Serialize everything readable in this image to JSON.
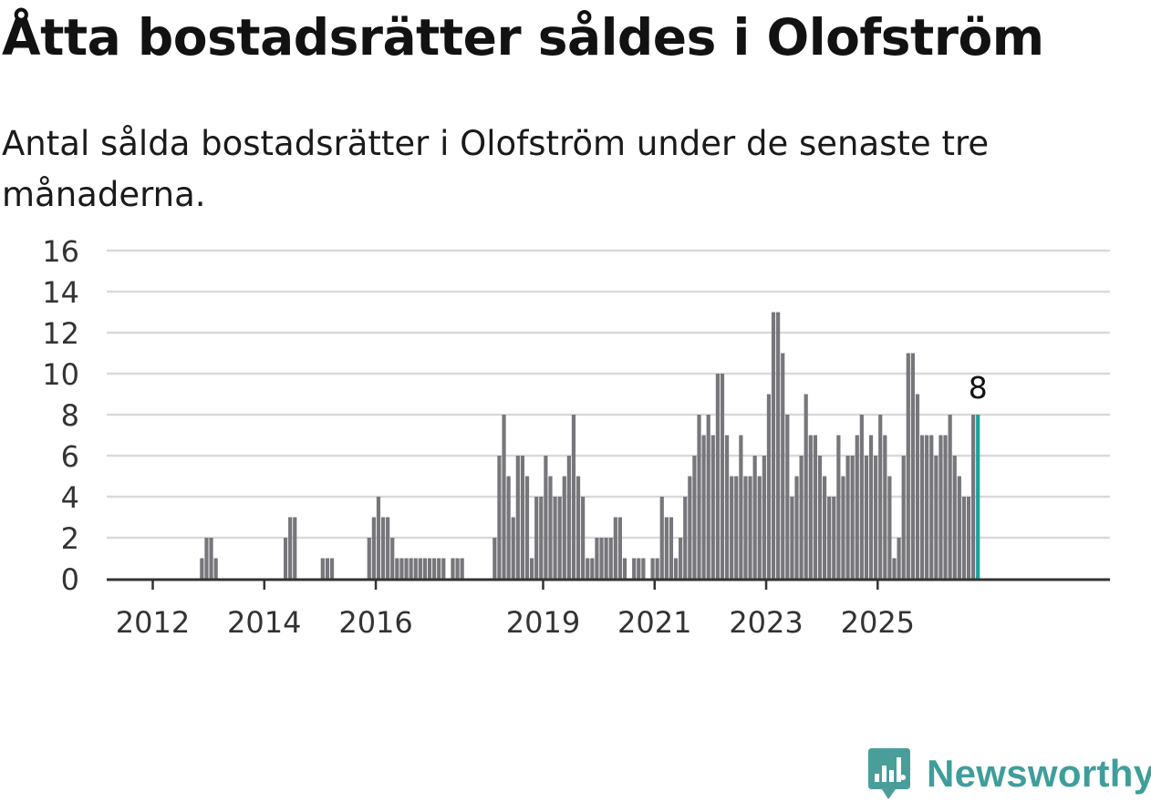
{
  "header": {
    "title": "Åtta bostadsrätter såldes i Olofström",
    "subtitle": "Antal sålda bostadsrätter i Olofström under de senaste tre månaderna."
  },
  "brand": {
    "name": "Newsworthy",
    "icon": "newsworthy-logo-icon",
    "color": "#4a9e9a"
  },
  "chart_data": {
    "type": "bar",
    "start_year": 2012,
    "start_month": 1,
    "ylim": [
      0,
      16
    ],
    "yticks": [
      0,
      2,
      4,
      6,
      8,
      10,
      12,
      14,
      16
    ],
    "xtick_labels": [
      "2012",
      "2014",
      "2016",
      "2019",
      "2021",
      "2023",
      "2025"
    ],
    "bar_color": "#77767b",
    "highlight_color": "#1ba39c",
    "highlight_label": "8",
    "values": [
      0,
      0,
      0,
      0,
      0,
      0,
      0,
      0,
      0,
      1,
      2,
      2,
      1,
      0,
      0,
      0,
      0,
      0,
      0,
      0,
      0,
      0,
      0,
      0,
      0,
      0,
      0,
      2,
      3,
      3,
      0,
      0,
      0,
      0,
      0,
      1,
      1,
      1,
      0,
      0,
      0,
      0,
      0,
      0,
      0,
      2,
      3,
      4,
      3,
      3,
      2,
      1,
      1,
      1,
      1,
      1,
      1,
      1,
      1,
      1,
      1,
      1,
      0,
      1,
      1,
      1,
      0,
      0,
      0,
      0,
      0,
      0,
      2,
      6,
      8,
      5,
      3,
      6,
      6,
      5,
      1,
      4,
      4,
      6,
      5,
      4,
      4,
      5,
      6,
      8,
      5,
      4,
      1,
      1,
      2,
      2,
      2,
      2,
      3,
      3,
      1,
      0,
      1,
      1,
      1,
      0,
      1,
      1,
      4,
      3,
      3,
      1,
      2,
      4,
      5,
      6,
      8,
      7,
      8,
      7,
      10,
      10,
      7,
      5,
      5,
      7,
      5,
      5,
      6,
      5,
      6,
      9,
      13,
      13,
      11,
      8,
      4,
      5,
      6,
      9,
      7,
      7,
      6,
      5,
      4,
      4,
      7,
      5,
      6,
      6,
      7,
      8,
      6,
      7,
      6,
      8,
      7,
      5,
      1,
      2,
      6,
      11,
      11,
      9,
      7,
      7,
      7,
      6,
      7,
      7,
      8,
      6,
      5,
      4,
      4,
      8,
      8
    ]
  }
}
